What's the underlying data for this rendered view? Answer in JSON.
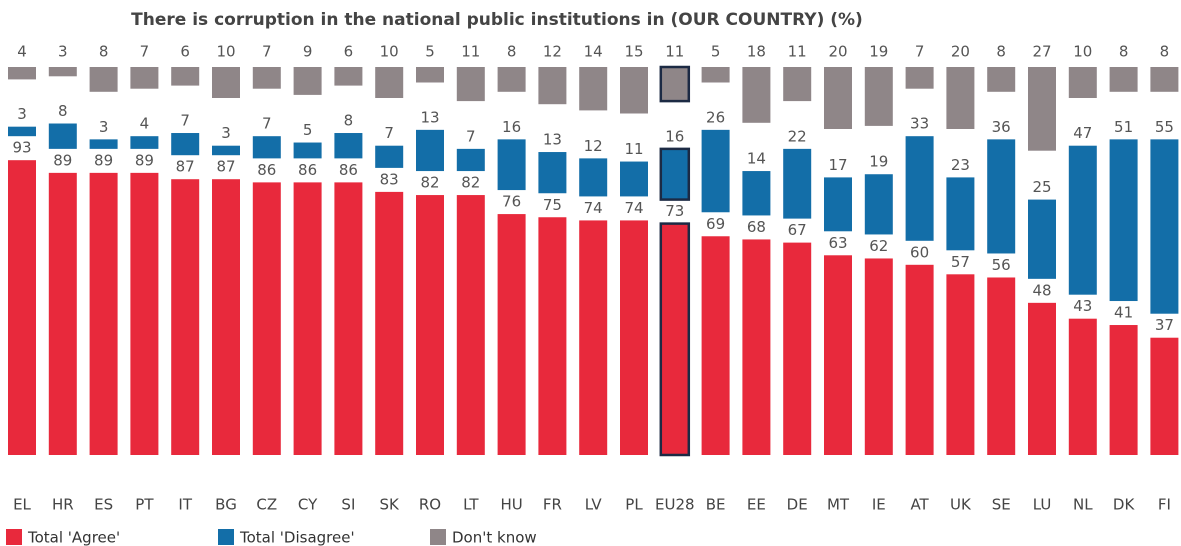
{
  "chart_data": {
    "type": "bar",
    "title": "There is corruption in the national public institutions in (OUR COUNTRY) (%)",
    "categories": [
      "EL",
      "HR",
      "ES",
      "PT",
      "IT",
      "BG",
      "CZ",
      "CY",
      "SI",
      "SK",
      "RO",
      "LT",
      "HU",
      "FR",
      "LV",
      "PL",
      "EU28",
      "BE",
      "EE",
      "DE",
      "MT",
      "IE",
      "AT",
      "UK",
      "SE",
      "LU",
      "NL",
      "DK",
      "FI"
    ],
    "highlight": "EU28",
    "series": [
      {
        "name": "Total 'Agree'",
        "color": "#e8293c",
        "values": [
          93,
          89,
          89,
          89,
          87,
          87,
          86,
          86,
          86,
          83,
          82,
          82,
          76,
          75,
          74,
          74,
          73,
          69,
          68,
          67,
          63,
          62,
          60,
          57,
          56,
          48,
          43,
          41,
          37
        ]
      },
      {
        "name": "Total 'Disagree'",
        "color": "#136ea8",
        "values": [
          3,
          8,
          3,
          4,
          7,
          3,
          7,
          5,
          8,
          7,
          13,
          7,
          16,
          13,
          12,
          11,
          16,
          26,
          14,
          22,
          17,
          19,
          33,
          23,
          36,
          25,
          47,
          51,
          55
        ]
      },
      {
        "name": "Don't know",
        "color": "#8f8688",
        "values": [
          4,
          3,
          8,
          7,
          6,
          10,
          7,
          9,
          6,
          10,
          5,
          11,
          8,
          12,
          14,
          15,
          11,
          5,
          18,
          11,
          20,
          19,
          7,
          20,
          8,
          27,
          10,
          8,
          8
        ]
      }
    ]
  }
}
